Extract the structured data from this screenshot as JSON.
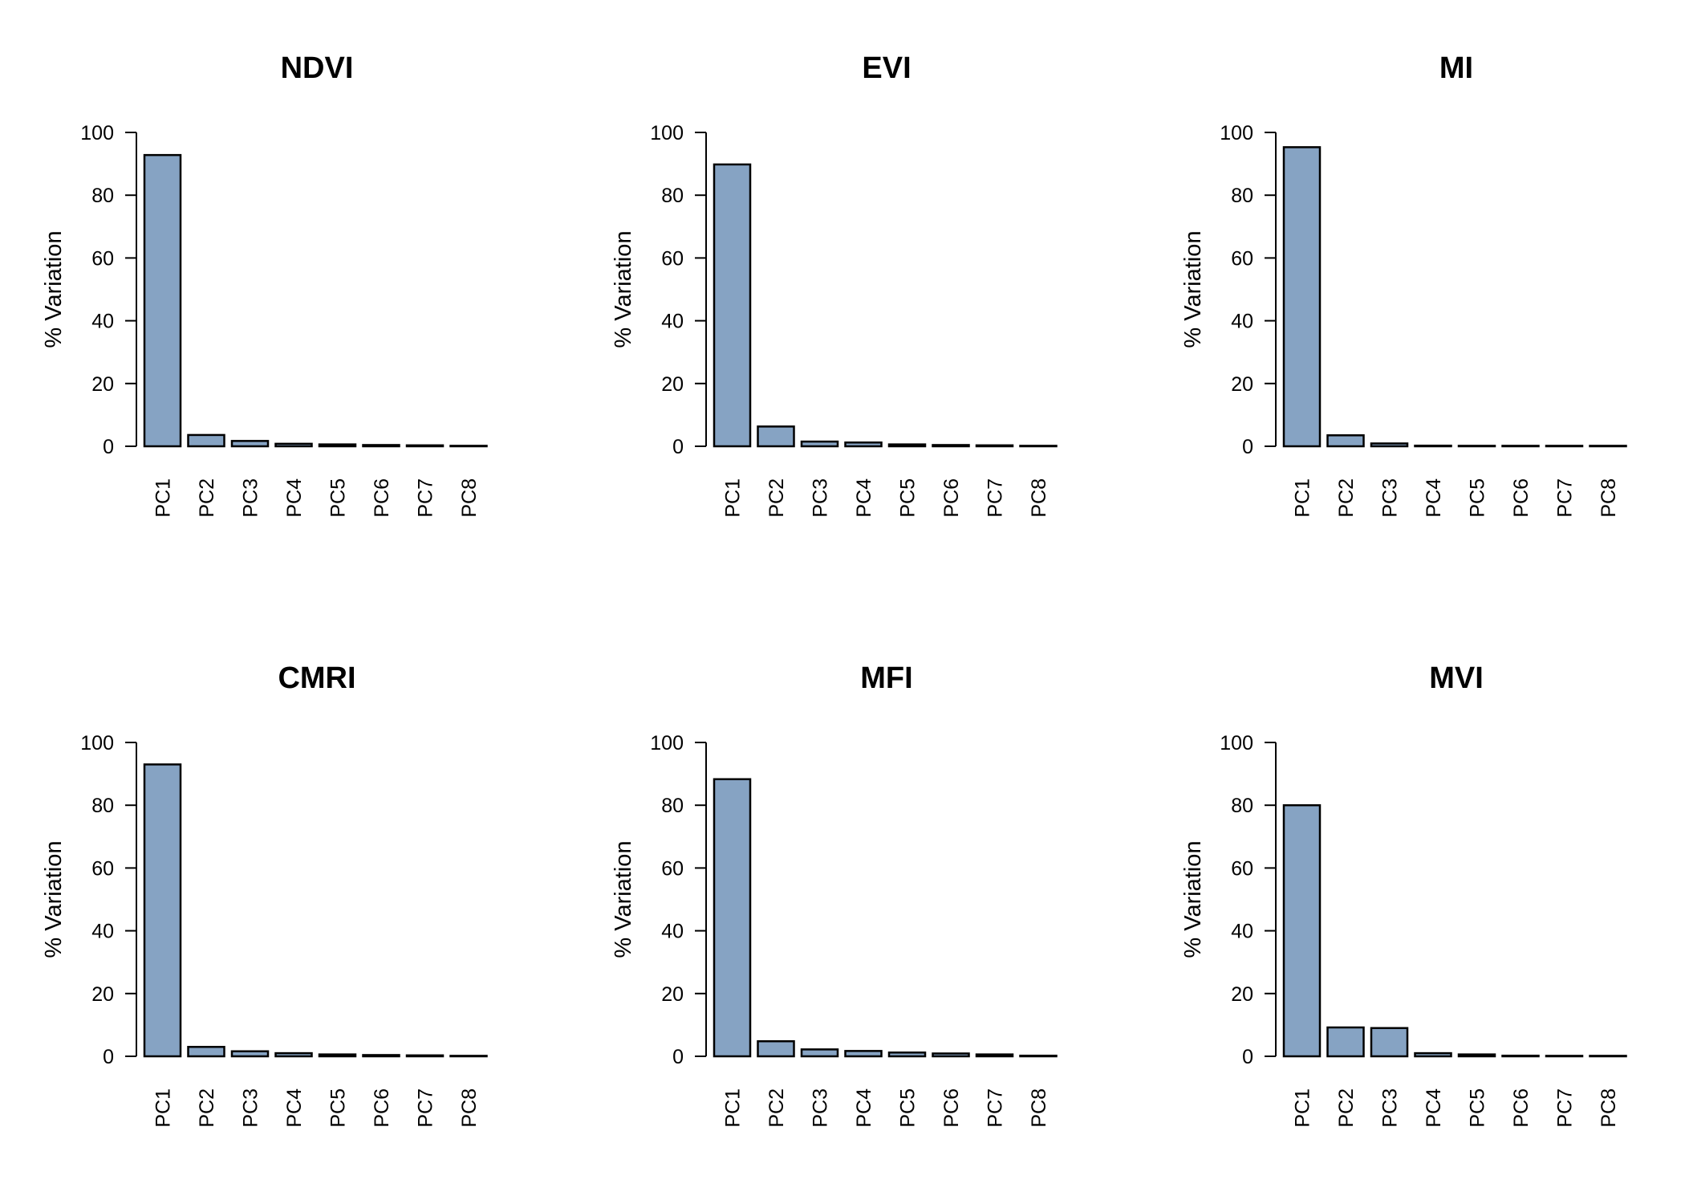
{
  "bar_color": "#86a3c3",
  "chart_data": [
    {
      "type": "bar",
      "title": "NDVI",
      "ylabel": "% Variation",
      "categories": [
        "PC1",
        "PC2",
        "PC3",
        "PC4",
        "PC5",
        "PC6",
        "PC7",
        "PC8"
      ],
      "values": [
        92.8,
        3.6,
        1.7,
        0.8,
        0.6,
        0.4,
        0.3,
        0.1
      ],
      "ylim": [
        0,
        100
      ],
      "yticks": [
        "0",
        "20",
        "40",
        "60",
        "80",
        "100"
      ],
      "grid": false,
      "legend": "none"
    },
    {
      "type": "bar",
      "title": "EVI",
      "ylabel": "% Variation",
      "categories": [
        "PC1",
        "PC2",
        "PC3",
        "PC4",
        "PC5",
        "PC6",
        "PC7",
        "PC8"
      ],
      "values": [
        89.8,
        6.3,
        1.5,
        1.2,
        0.6,
        0.4,
        0.3,
        0.1
      ],
      "ylim": [
        0,
        100
      ],
      "yticks": [
        "0",
        "20",
        "40",
        "60",
        "80",
        "100"
      ],
      "grid": false,
      "legend": "none"
    },
    {
      "type": "bar",
      "title": "MI",
      "ylabel": "% Variation",
      "categories": [
        "PC1",
        "PC2",
        "PC3",
        "PC4",
        "PC5",
        "PC6",
        "PC7",
        "PC8"
      ],
      "values": [
        95.3,
        3.5,
        0.9,
        0.2,
        0.1,
        0.05,
        0.05,
        0.02
      ],
      "ylim": [
        0,
        100
      ],
      "yticks": [
        "0",
        "20",
        "40",
        "60",
        "80",
        "100"
      ],
      "grid": false,
      "legend": "none"
    },
    {
      "type": "bar",
      "title": "CMRI",
      "ylabel": "% Variation",
      "categories": [
        "PC1",
        "PC2",
        "PC3",
        "PC4",
        "PC5",
        "PC6",
        "PC7",
        "PC8"
      ],
      "values": [
        93.0,
        3.0,
        1.6,
        1.0,
        0.6,
        0.4,
        0.3,
        0.1
      ],
      "ylim": [
        0,
        100
      ],
      "yticks": [
        "0",
        "20",
        "40",
        "60",
        "80",
        "100"
      ],
      "grid": false,
      "legend": "none"
    },
    {
      "type": "bar",
      "title": "MFI",
      "ylabel": "% Variation",
      "categories": [
        "PC1",
        "PC2",
        "PC3",
        "PC4",
        "PC5",
        "PC6",
        "PC7",
        "PC8"
      ],
      "values": [
        88.3,
        4.8,
        2.2,
        1.7,
        1.2,
        0.9,
        0.6,
        0.2
      ],
      "ylim": [
        0,
        100
      ],
      "yticks": [
        "0",
        "20",
        "40",
        "60",
        "80",
        "100"
      ],
      "grid": false,
      "legend": "none"
    },
    {
      "type": "bar",
      "title": "MVI",
      "ylabel": "% Variation",
      "categories": [
        "PC1",
        "PC2",
        "PC3",
        "PC4",
        "PC5",
        "PC6",
        "PC7",
        "PC8"
      ],
      "values": [
        80.0,
        9.2,
        9.0,
        1.0,
        0.6,
        0.2,
        0.15,
        0.1
      ],
      "ylim": [
        0,
        100
      ],
      "yticks": [
        "0",
        "20",
        "40",
        "60",
        "80",
        "100"
      ],
      "grid": false,
      "legend": "none"
    }
  ]
}
